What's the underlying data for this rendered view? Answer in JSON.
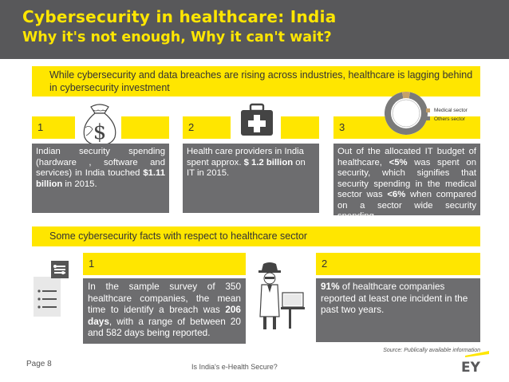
{
  "header": {
    "title": "Cybersecurity in healthcare: India",
    "subtitle": "Why it's not enough, Why it can't wait?"
  },
  "section1": {
    "banner": "While cybersecurity and data breaches are rising across industries, healthcare is lagging behind in cybersecurity investment",
    "items": [
      {
        "number": "1",
        "icon": "money-bag-icon",
        "text_a": "Indian security spending (hardware , software and services) in India touched ",
        "highlight": "$1.11 billion",
        "text_b": " in 2015."
      },
      {
        "number": "2",
        "icon": "medical-kit-icon",
        "text_a": "Health care providers in India spent approx. ",
        "highlight": "$ 1.2 billion",
        "text_b": " on IT in 2015."
      },
      {
        "number": "3",
        "icon": "donut-chart-icon",
        "text_a": "Out of the allocated IT budget of healthcare, ",
        "highlight": "<5%",
        "text_b": " was spent on security, which signifies that security spending in the medical sector was ",
        "highlight2": "<6%",
        "text_c": " when compared on a sector wide security spending."
      }
    ],
    "chart_data": {
      "type": "pie",
      "labels": [
        "Medical sector",
        "Others sector"
      ],
      "values": [
        6,
        94
      ],
      "colors": [
        "#c4a06a",
        "#7a7a7a"
      ]
    }
  },
  "section2": {
    "banner": "Some cybersecurity facts with respect to healthcare sector",
    "items": [
      {
        "number": "1",
        "icon": "checklist-icon",
        "text_a": "In the sample survey of 350 healthcare companies, the mean time to identify a breach was ",
        "highlight": "206 days",
        "text_b": ", with a range of between 20 and 582 days being reported."
      },
      {
        "number": "2",
        "icon": "hacker-icon",
        "highlight": "91%",
        "text_b": " of healthcare companies reported at least one incident in the past two years."
      }
    ]
  },
  "footer": {
    "page": "Page 8",
    "center": "Is India's e-Health Secure?",
    "source": "Source: Publically available information",
    "logo": "EY"
  },
  "colors": {
    "header_bg": "#58585a",
    "accent": "#ffe600",
    "box_bg": "#6d6d6f"
  }
}
